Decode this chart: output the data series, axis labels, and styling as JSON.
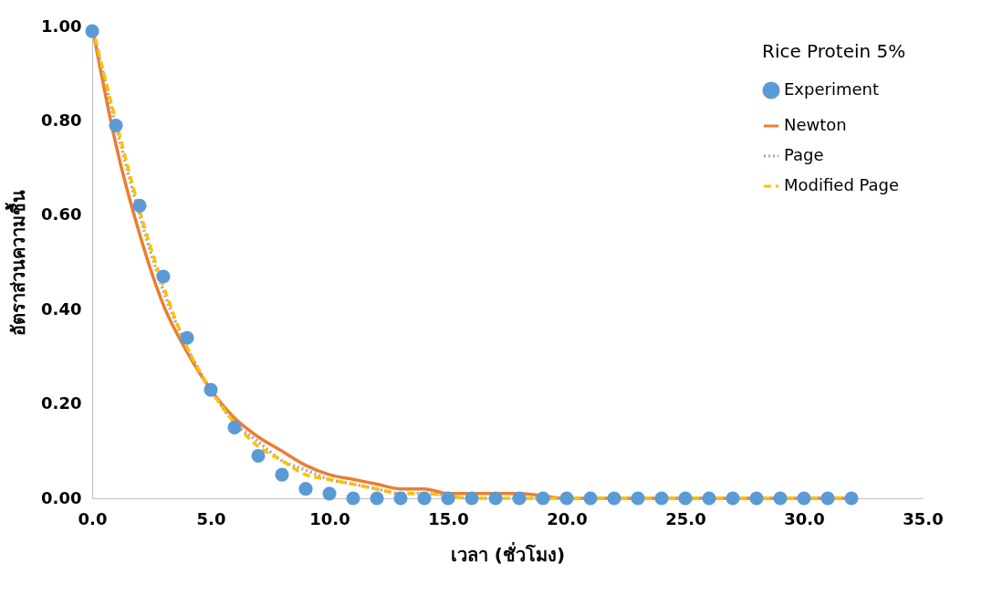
{
  "chart_data": {
    "type": "scatter",
    "xlabel": "เวลา (ชั่วโมง)",
    "ylabel": "อัตราส่วนความชื้น",
    "legend_title": "Rice Protein 5%",
    "xlim": [
      0,
      35
    ],
    "ylim": [
      0,
      1
    ],
    "xticks": [
      {
        "value": 0,
        "label": "0.0"
      },
      {
        "value": 5,
        "label": "5.0"
      },
      {
        "value": 10,
        "label": "10.0"
      },
      {
        "value": 15,
        "label": "15.0"
      },
      {
        "value": 20,
        "label": "20.0"
      },
      {
        "value": 25,
        "label": "25.0"
      },
      {
        "value": 30,
        "label": "30.0"
      },
      {
        "value": 35,
        "label": "35.0"
      }
    ],
    "yticks": [
      {
        "value": 0,
        "label": "0.00"
      },
      {
        "value": 0.2,
        "label": "0.20"
      },
      {
        "value": 0.4,
        "label": "0.40"
      },
      {
        "value": 0.6,
        "label": "0.60"
      },
      {
        "value": 0.8,
        "label": "0.80"
      },
      {
        "value": 1,
        "label": "1.00"
      }
    ],
    "grid": false,
    "legend": "top right",
    "series": [
      {
        "name": "Experiment",
        "type": "scatter",
        "marker": "circle",
        "color": "#5b9bd5",
        "x": [
          0,
          1,
          2,
          3,
          4,
          5,
          6,
          7,
          8,
          9,
          10,
          11,
          12,
          13,
          14,
          15,
          16,
          17,
          18,
          19,
          20,
          21,
          22,
          23,
          24,
          25,
          26,
          27,
          28,
          29,
          30,
          31,
          32
        ],
        "values": [
          0.99,
          0.79,
          0.62,
          0.47,
          0.34,
          0.23,
          0.15,
          0.09,
          0.05,
          0.02,
          0.01,
          0.0,
          0.0,
          0.0,
          0.0,
          0.0,
          0.0,
          0.0,
          0.0,
          0.0,
          0.0,
          0.0,
          0.0,
          0.0,
          0.0,
          0.0,
          0.0,
          0.0,
          0.0,
          0.0,
          0.0,
          0.0,
          0.0
        ]
      },
      {
        "name": "Newton",
        "type": "line",
        "line_style": "solid",
        "color": "#ed7d31",
        "x": [
          0,
          1,
          2,
          3,
          4,
          5,
          6,
          7,
          8,
          9,
          10,
          11,
          12,
          13,
          14,
          15,
          16,
          18,
          20,
          22,
          25,
          28,
          32
        ],
        "values": [
          1.0,
          0.75,
          0.56,
          0.41,
          0.31,
          0.23,
          0.17,
          0.13,
          0.1,
          0.07,
          0.05,
          0.04,
          0.03,
          0.02,
          0.02,
          0.01,
          0.01,
          0.01,
          0.0,
          0.0,
          0.0,
          0.0,
          0.0
        ]
      },
      {
        "name": "Page",
        "type": "line",
        "line_style": "dotted",
        "color": "#a5a5a5",
        "x": [
          0,
          1,
          2,
          3,
          4,
          5,
          6,
          7,
          8,
          9,
          10,
          11,
          12,
          13,
          14,
          16,
          18,
          20,
          25,
          32
        ],
        "values": [
          1.0,
          0.79,
          0.6,
          0.44,
          0.32,
          0.23,
          0.16,
          0.12,
          0.08,
          0.06,
          0.04,
          0.03,
          0.02,
          0.01,
          0.01,
          0.0,
          0.0,
          0.0,
          0.0,
          0.0
        ]
      },
      {
        "name": "Modified Page",
        "type": "line",
        "line_style": "dashed",
        "color": "#ffc000",
        "x": [
          0,
          1,
          2,
          3,
          4,
          5,
          6,
          7,
          8,
          9,
          10,
          11,
          12,
          13,
          14,
          16,
          18,
          20,
          25,
          32
        ],
        "values": [
          1.0,
          0.8,
          0.61,
          0.45,
          0.32,
          0.23,
          0.16,
          0.11,
          0.08,
          0.05,
          0.04,
          0.03,
          0.02,
          0.01,
          0.01,
          0.0,
          0.0,
          0.0,
          0.0,
          0.0
        ]
      }
    ]
  }
}
